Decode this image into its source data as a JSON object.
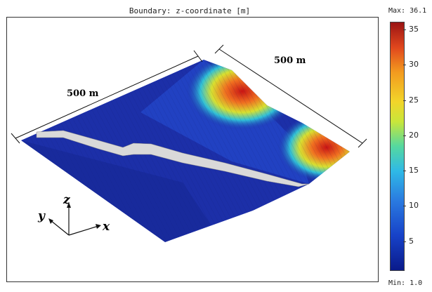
{
  "title": "Boundary: z-coordinate [m]",
  "colorbar": {
    "max_label": "Max: 36.1",
    "min_label": "Min: 1.0",
    "min": 1.0,
    "max": 36.1,
    "ticks": [
      "35",
      "30",
      "25",
      "20",
      "15",
      "10",
      "5"
    ],
    "tick_values": [
      35,
      30,
      25,
      20,
      15,
      10,
      5
    ]
  },
  "dimensions": {
    "left_edge": "500 m",
    "right_edge": "500 m"
  },
  "axes": {
    "x": "x",
    "y": "y",
    "z": "z"
  },
  "colors": {
    "surface_base": "#1c2fa8",
    "peak": "#c81f1a",
    "road": "#d9d9d9"
  }
}
